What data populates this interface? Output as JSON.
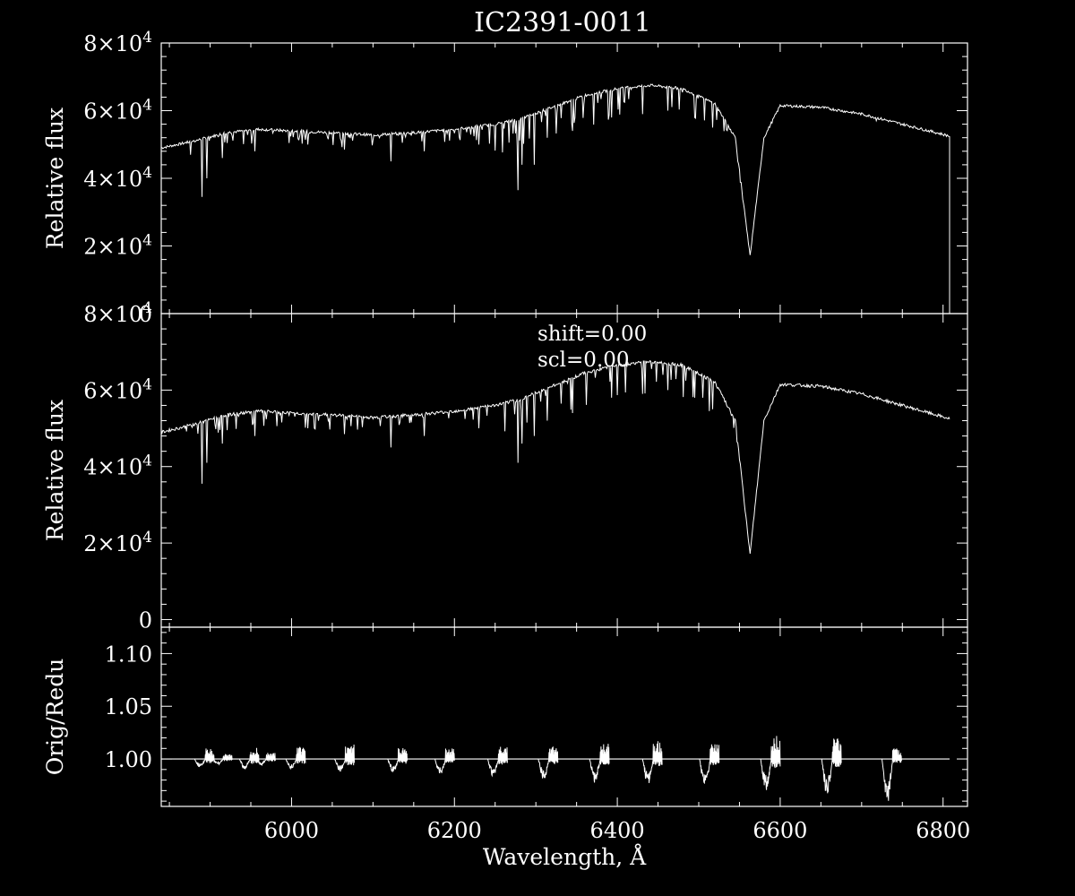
{
  "title": "IC2391-0011",
  "colors": {
    "background": "#000000",
    "foreground": "#ffffff"
  },
  "chart_data": [
    {
      "type": "line",
      "panel": "top",
      "xlabel": "",
      "ylabel": "Relative flux",
      "xlim": [
        5840,
        6830
      ],
      "ylim": [
        0,
        80000
      ],
      "yticks": [
        {
          "value": 0,
          "label": "0"
        },
        {
          "value": 20000,
          "label": "2×10",
          "exp": "4"
        },
        {
          "value": 40000,
          "label": "4×10",
          "exp": "4"
        },
        {
          "value": 60000,
          "label": "6×10",
          "exp": "4"
        },
        {
          "value": 80000,
          "label": "8×10",
          "exp": "4"
        }
      ],
      "series": [
        {
          "x": [
            5840,
            5880,
            5920,
            5960,
            6000,
            6050,
            6100,
            6150,
            6200,
            6250,
            6280,
            6320,
            6360,
            6400,
            6440,
            6480,
            6520,
            6545,
            6563,
            6580,
            6600,
            6650,
            6700,
            6750,
            6808
          ],
          "y": [
            49000,
            51000,
            53500,
            54500,
            54000,
            53500,
            52800,
            53500,
            54500,
            56000,
            57500,
            61000,
            64500,
            66500,
            67500,
            66500,
            62000,
            52000,
            17000,
            52000,
            61500,
            61000,
            59000,
            56000,
            52500
          ]
        }
      ],
      "absorption_lines": [
        {
          "x": 5890,
          "y": 34500
        },
        {
          "x": 5896,
          "y": 40000
        },
        {
          "x": 5915,
          "y": 46000
        },
        {
          "x": 5955,
          "y": 48000
        },
        {
          "x": 6020,
          "y": 50000
        },
        {
          "x": 6065,
          "y": 48500
        },
        {
          "x": 6122,
          "y": 45000
        },
        {
          "x": 6163,
          "y": 48000
        },
        {
          "x": 6230,
          "y": 50000
        },
        {
          "x": 6278,
          "y": 36500
        },
        {
          "x": 6283,
          "y": 44000
        },
        {
          "x": 6298,
          "y": 44000
        },
        {
          "x": 6314,
          "y": 52000
        },
        {
          "x": 6345,
          "y": 54000
        },
        {
          "x": 6393,
          "y": 58000
        },
        {
          "x": 6431,
          "y": 59000
        },
        {
          "x": 6462,
          "y": 60000
        },
        {
          "x": 6495,
          "y": 58000
        },
        {
          "x": 6517,
          "y": 55000
        },
        {
          "x": 6718,
          "y": 57000
        }
      ]
    },
    {
      "type": "line",
      "panel": "middle",
      "xlabel": "",
      "ylabel": "Relative flux",
      "xlim": [
        5840,
        6830
      ],
      "ylim": [
        -2000,
        80000
      ],
      "yticks": [
        {
          "value": 0,
          "label": "0"
        },
        {
          "value": 20000,
          "label": "2×10",
          "exp": "4"
        },
        {
          "value": 40000,
          "label": "4×10",
          "exp": "4"
        },
        {
          "value": 60000,
          "label": "6×10",
          "exp": "4"
        },
        {
          "value": 80000,
          "label": "8×10",
          "exp": "4"
        }
      ],
      "annotations": [
        "shift=0.00",
        "scl=0.00"
      ],
      "series": [
        {
          "x": [
            5840,
            5880,
            5920,
            5960,
            6000,
            6050,
            6100,
            6150,
            6200,
            6250,
            6280,
            6320,
            6360,
            6400,
            6440,
            6480,
            6520,
            6545,
            6563,
            6580,
            6600,
            6650,
            6700,
            6750,
            6808
          ],
          "y": [
            49000,
            51000,
            53500,
            54500,
            54000,
            53500,
            52800,
            53500,
            54500,
            56000,
            57500,
            61000,
            64500,
            66500,
            67500,
            66500,
            62000,
            52000,
            17000,
            52000,
            61500,
            61000,
            59000,
            56000,
            52500
          ]
        }
      ],
      "absorption_lines": [
        {
          "x": 5890,
          "y": 35500
        },
        {
          "x": 5896,
          "y": 41000
        },
        {
          "x": 5915,
          "y": 46000
        },
        {
          "x": 5955,
          "y": 48000
        },
        {
          "x": 6020,
          "y": 50000
        },
        {
          "x": 6065,
          "y": 48500
        },
        {
          "x": 6122,
          "y": 45000
        },
        {
          "x": 6163,
          "y": 48000
        },
        {
          "x": 6230,
          "y": 50000
        },
        {
          "x": 6278,
          "y": 41000
        },
        {
          "x": 6283,
          "y": 46000
        },
        {
          "x": 6298,
          "y": 48000
        },
        {
          "x": 6314,
          "y": 52000
        },
        {
          "x": 6345,
          "y": 54000
        },
        {
          "x": 6393,
          "y": 58000
        },
        {
          "x": 6431,
          "y": 59000
        },
        {
          "x": 6462,
          "y": 60000
        },
        {
          "x": 6495,
          "y": 58000
        },
        {
          "x": 6517,
          "y": 55000
        }
      ]
    },
    {
      "type": "line",
      "panel": "bottom",
      "xlabel": "Wavelength, Å",
      "ylabel": "Orig/Redu",
      "xlim": [
        5840,
        6830
      ],
      "ylim": [
        0.955,
        1.125
      ],
      "yticks": [
        {
          "value": 1.0,
          "label": "1.00"
        },
        {
          "value": 1.05,
          "label": "1.05"
        },
        {
          "value": 1.1,
          "label": "1.10"
        }
      ],
      "xticks": [
        {
          "value": 6000,
          "label": "6000"
        },
        {
          "value": 6200,
          "label": "6200"
        },
        {
          "value": 6400,
          "label": "6400"
        },
        {
          "value": 6600,
          "label": "6600"
        },
        {
          "value": 6800,
          "label": "6800"
        }
      ],
      "baseline": 1.0,
      "x_end": 6808,
      "ripples": [
        {
          "x": 5893,
          "min": 0.992,
          "max": 1.01
        },
        {
          "x": 5915,
          "min": 0.995,
          "max": 1.005
        },
        {
          "x": 5948,
          "min": 0.99,
          "max": 1.012
        },
        {
          "x": 5968,
          "min": 0.994,
          "max": 1.006
        },
        {
          "x": 6005,
          "min": 0.99,
          "max": 1.012
        },
        {
          "x": 6065,
          "min": 0.988,
          "max": 1.015
        },
        {
          "x": 6130,
          "min": 0.987,
          "max": 1.012
        },
        {
          "x": 6188,
          "min": 0.985,
          "max": 1.01
        },
        {
          "x": 6253,
          "min": 0.983,
          "max": 1.013
        },
        {
          "x": 6315,
          "min": 0.98,
          "max": 1.013
        },
        {
          "x": 6378,
          "min": 0.977,
          "max": 1.015
        },
        {
          "x": 6443,
          "min": 0.975,
          "max": 1.017
        },
        {
          "x": 6513,
          "min": 0.972,
          "max": 1.015
        },
        {
          "x": 6588,
          "min": 0.97,
          "max": 1.022
        },
        {
          "x": 6663,
          "min": 0.965,
          "max": 1.02
        },
        {
          "x": 6737,
          "min": 0.957,
          "max": 1.01
        }
      ]
    }
  ]
}
